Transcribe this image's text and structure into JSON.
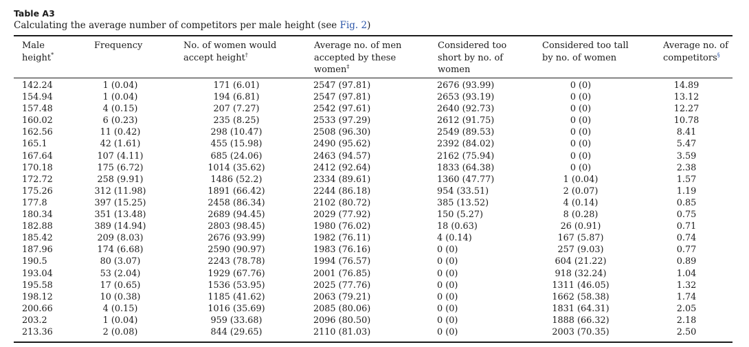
{
  "caption": {
    "label": "Table A3",
    "text": "Calculating the average number of competitors per male height (see ",
    "link": "Fig. 2",
    "tail": ")"
  },
  "headers": [
    {
      "line1": "Male",
      "line2": "height",
      "line3": "",
      "mark": "*"
    },
    {
      "line1": "Frequency",
      "line2": "",
      "line3": "",
      "mark": ""
    },
    {
      "line1": "No. of women would",
      "line2": "accept height",
      "line3": "",
      "mark": "†"
    },
    {
      "line1": "Average no. of men",
      "line2": "accepted by these",
      "line3": "women",
      "mark": "‡"
    },
    {
      "line1": "Considered too",
      "line2": "short by no. of",
      "line3": "women",
      "mark": ""
    },
    {
      "line1": "Considered too tall",
      "line2": "by no. of women",
      "line3": "",
      "mark": ""
    },
    {
      "line1": "Average no. of",
      "line2": "competitors",
      "line3": "",
      "mark": "§"
    }
  ],
  "rows": [
    [
      "142.24",
      "1 (0.04)",
      "171 (6.01)",
      "2547 (97.81)",
      "2676 (93.99)",
      "0 (0)",
      "14.89"
    ],
    [
      "154.94",
      "1 (0.04)",
      "194 (6.81)",
      "2547 (97.81)",
      "2653 (93.19)",
      "0 (0)",
      "13.12"
    ],
    [
      "157.48",
      "4 (0.15)",
      "207 (7.27)",
      "2542 (97.61)",
      "2640 (92.73)",
      "0 (0)",
      "12.27"
    ],
    [
      "160.02",
      "6 (0.23)",
      "235 (8.25)",
      "2533 (97.29)",
      "2612 (91.75)",
      "0 (0)",
      "10.78"
    ],
    [
      "162.56",
      "11 (0.42)",
      "298 (10.47)",
      "2508 (96.30)",
      "2549 (89.53)",
      "0 (0)",
      "8.41"
    ],
    [
      "165.1",
      "42 (1.61)",
      "455 (15.98)",
      "2490 (95.62)",
      "2392 (84.02)",
      "0 (0)",
      "5.47"
    ],
    [
      "167.64",
      "107 (4.11)",
      "685 (24.06)",
      "2463 (94.57)",
      "2162 (75.94)",
      "0 (0)",
      "3.59"
    ],
    [
      "170.18",
      "175 (6.72)",
      "1014 (35.62)",
      "2412 (92.64)",
      "1833 (64.38)",
      "0 (0)",
      "2.38"
    ],
    [
      "172.72",
      "258 (9.91)",
      "1486 (52.2)",
      "2334 (89.61)",
      "1360 (47.77)",
      "1 (0.04)",
      "1.57"
    ],
    [
      "175.26",
      "312 (11.98)",
      "1891 (66.42)",
      "2244 (86.18)",
      "954 (33.51)",
      "2 (0.07)",
      "1.19"
    ],
    [
      "177.8",
      "397 (15.25)",
      "2458 (86.34)",
      "2102 (80.72)",
      "385 (13.52)",
      "4 (0.14)",
      "0.85"
    ],
    [
      "180.34",
      "351 (13.48)",
      "2689 (94.45)",
      "2029 (77.92)",
      "150 (5.27)",
      "8 (0.28)",
      "0.75"
    ],
    [
      "182.88",
      "389 (14.94)",
      "2803 (98.45)",
      "1980 (76.02)",
      "18 (0.63)",
      "26 (0.91)",
      "0.71"
    ],
    [
      "185.42",
      "209 (8.03)",
      "2676 (93.99)",
      "1982 (76.11)",
      "4 (0.14)",
      "167 (5.87)",
      "0.74"
    ],
    [
      "187.96",
      "174 (6.68)",
      "2590 (90.97)",
      "1983 (76.16)",
      "0 (0)",
      "257 (9.03)",
      "0.77"
    ],
    [
      "190.5",
      "80 (3.07)",
      "2243 (78.78)",
      "1994 (76.57)",
      "0 (0)",
      "604 (21.22)",
      "0.89"
    ],
    [
      "193.04",
      "53 (2.04)",
      "1929 (67.76)",
      "2001 (76.85)",
      "0 (0)",
      "918 (32.24)",
      "1.04"
    ],
    [
      "195.58",
      "17 (0.65)",
      "1536 (53.95)",
      "2025 (77.76)",
      "0 (0)",
      "1311 (46.05)",
      "1.32"
    ],
    [
      "198.12",
      "10 (0.38)",
      "1185 (41.62)",
      "2063 (79.21)",
      "0 (0)",
      "1662 (58.38)",
      "1.74"
    ],
    [
      "200.66",
      "4 (0.15)",
      "1016 (35.69)",
      "2085 (80.06)",
      "0 (0)",
      "1831 (64.31)",
      "2.05"
    ],
    [
      "203.2",
      "1 (0.04)",
      "959 (33.68)",
      "2096 (80.50)",
      "0 (0)",
      "1888 (66.32)",
      "2.18"
    ],
    [
      "213.36",
      "2 (0.08)",
      "844 (29.65)",
      "2110 (81.03)",
      "0 (0)",
      "2003 (70.35)",
      "2.50"
    ]
  ]
}
